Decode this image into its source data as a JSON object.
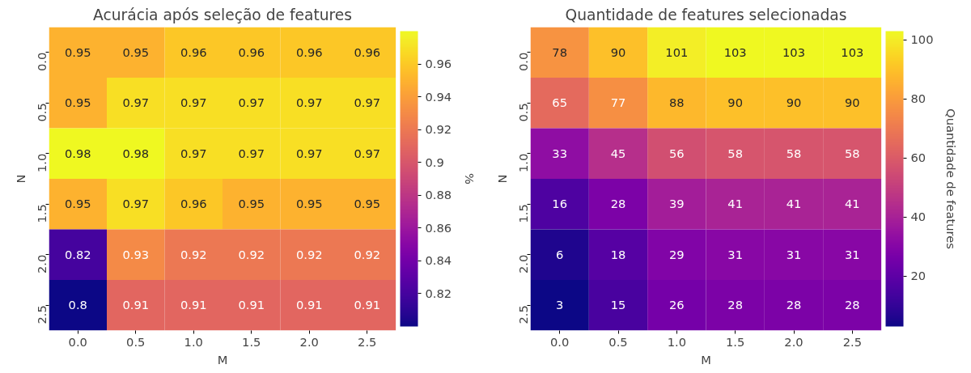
{
  "chart_data": [
    {
      "type": "heatmap",
      "title": "Acurácia após seleção de features",
      "xlabel": "M",
      "ylabel": "N",
      "clabel": "%",
      "data_labels": true,
      "categories": [
        "0.0",
        "0.5",
        "1.0",
        "1.5",
        "2.0",
        "2.5"
      ],
      "y_categories": [
        "0.0",
        "0.5",
        "1.0",
        "1.5",
        "2.0",
        "2.5"
      ],
      "cells": [
        [
          0.95,
          0.95,
          0.96,
          0.96,
          0.96,
          0.96
        ],
        [
          0.95,
          0.97,
          0.97,
          0.97,
          0.97,
          0.97
        ],
        [
          0.98,
          0.98,
          0.97,
          0.97,
          0.97,
          0.97
        ],
        [
          0.95,
          0.97,
          0.96,
          0.95,
          0.95,
          0.95
        ],
        [
          0.82,
          0.93,
          0.92,
          0.92,
          0.92,
          0.92
        ],
        [
          0.8,
          0.91,
          0.91,
          0.91,
          0.91,
          0.91
        ]
      ],
      "clim": [
        0.8,
        0.98
      ],
      "cticks": [
        0.82,
        0.84,
        0.86,
        0.88,
        0.9,
        0.92,
        0.94,
        0.96
      ]
    },
    {
      "type": "heatmap",
      "title": "Quantidade de features selecionadas",
      "xlabel": "M",
      "ylabel": "N",
      "clabel": "Quantidade de features",
      "data_labels": true,
      "categories": [
        "0.0",
        "0.5",
        "1.0",
        "1.5",
        "2.0",
        "2.5"
      ],
      "y_categories": [
        "0.0",
        "0.5",
        "1.0",
        "1.5",
        "2.0",
        "2.5"
      ],
      "cells": [
        [
          78,
          90,
          101,
          103,
          103,
          103
        ],
        [
          65,
          77,
          88,
          90,
          90,
          90
        ],
        [
          33,
          45,
          56,
          58,
          58,
          58
        ],
        [
          16,
          28,
          39,
          41,
          41,
          41
        ],
        [
          6,
          18,
          29,
          31,
          31,
          31
        ],
        [
          3,
          15,
          26,
          28,
          28,
          28
        ]
      ],
      "clim": [
        3,
        103
      ],
      "cticks": [
        20,
        40,
        60,
        80,
        100
      ]
    }
  ]
}
